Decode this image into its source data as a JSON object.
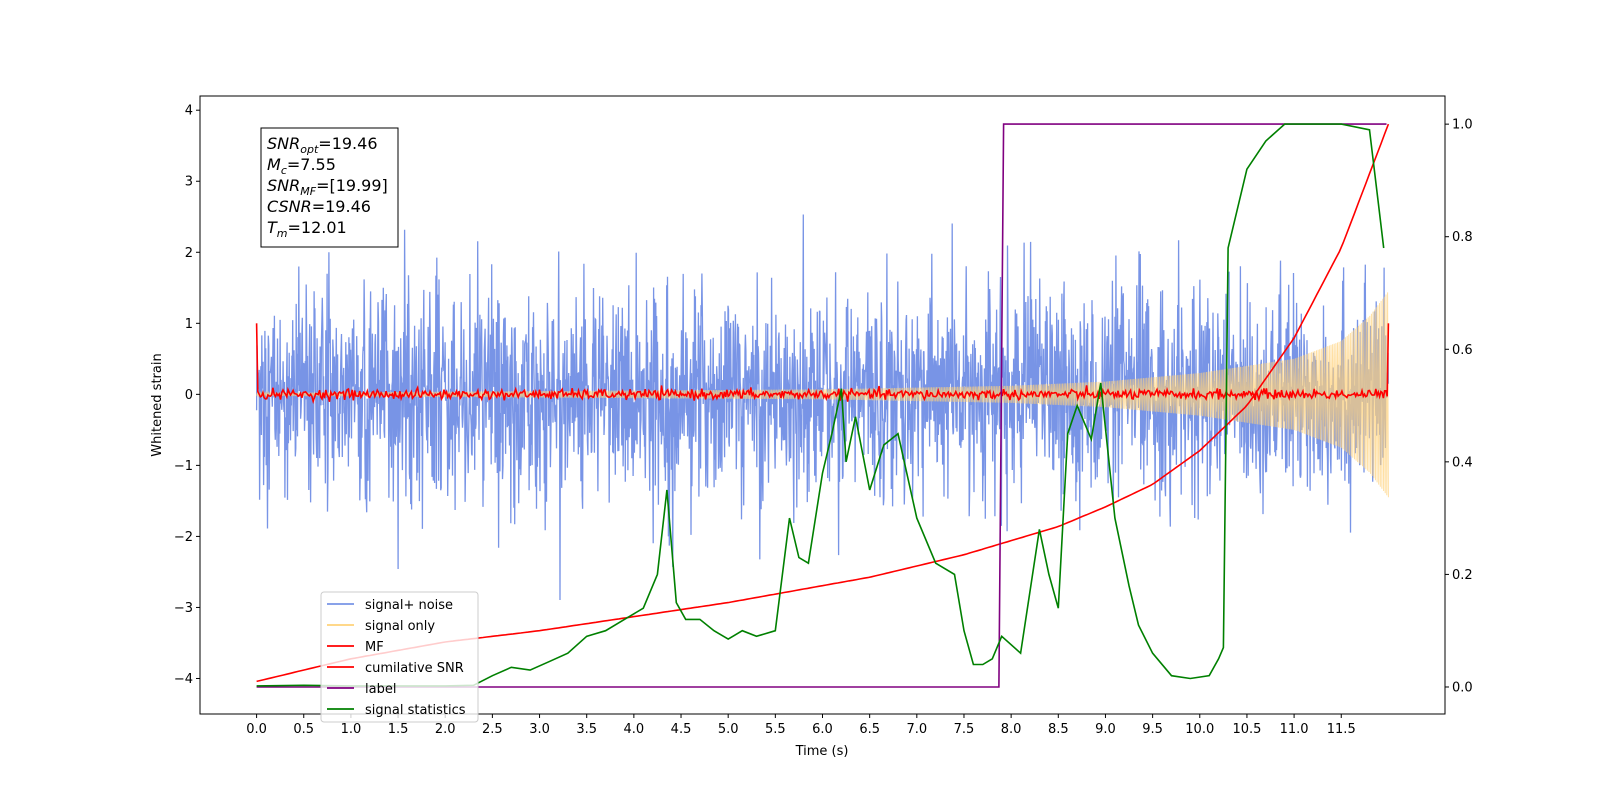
{
  "chart_data": {
    "type": "line",
    "xlabel": "Time (s)",
    "ylabel": "Whitened strain",
    "xlim": [
      -0.6,
      12.6
    ],
    "ylim_left": [
      -4.5,
      4.2
    ],
    "ylim_right": [
      -0.048,
      1.05
    ],
    "x_ticks": [
      "0.0",
      "0.5",
      "1.0",
      "1.5",
      "2.0",
      "2.5",
      "3.0",
      "3.5",
      "4.0",
      "4.5",
      "5.0",
      "5.5",
      "6.0",
      "6.5",
      "7.0",
      "7.5",
      "8.0",
      "8.5",
      "9.0",
      "9.5",
      "10.0",
      "10.5",
      "11.0",
      "11.5"
    ],
    "y_ticks_left": [
      "4",
      "3",
      "2",
      "1",
      "0",
      "−1",
      "−2",
      "−3",
      "−4"
    ],
    "y_ticks_right": [
      "1.0",
      "0.8",
      "0.6",
      "0.4",
      "0.2",
      "0.0"
    ],
    "grid": false,
    "legend_placement": "lower-left",
    "info_box": {
      "lines": [
        {
          "sym": "SNR",
          "sub": "opt",
          "val": "=19.46"
        },
        {
          "sym": "M",
          "sub": "c",
          "val": "=7.55"
        },
        {
          "sym": "SNR",
          "sub": "MF",
          "val": "=[19.99]"
        },
        {
          "sym": "CSNR",
          "sub": "",
          "val": "=19.46"
        },
        {
          "sym": "T",
          "sub": "m",
          "val": "=12.01"
        }
      ]
    },
    "series": [
      {
        "name": "signal+ noise",
        "color": "#7894e6",
        "axis": "left",
        "noise_std": 0.72,
        "t_range": [
          0.0,
          12.0
        ]
      },
      {
        "name": "signal only",
        "color": "#ffd27a",
        "axis": "left",
        "envelope": [
          [
            0.0,
            0.02
          ],
          [
            6.0,
            0.07
          ],
          [
            8.0,
            0.12
          ],
          [
            9.0,
            0.18
          ],
          [
            10.0,
            0.3
          ],
          [
            11.0,
            0.5
          ],
          [
            11.5,
            0.75
          ],
          [
            11.8,
            1.1
          ],
          [
            12.0,
            1.45
          ]
        ]
      },
      {
        "name": "MF",
        "color": "#ff0000",
        "axis": "left",
        "start_value": 1.0,
        "end_value": 1.0,
        "noise_std": 0.035
      },
      {
        "name": "cumilative SNR",
        "color": "#ff0000",
        "axis": "right",
        "x": [
          0.0,
          1.0,
          2.0,
          3.0,
          4.0,
          5.0,
          5.5,
          6.0,
          6.5,
          7.0,
          7.5,
          8.0,
          8.5,
          9.0,
          9.5,
          10.0,
          10.5,
          11.0,
          11.5,
          12.0
        ],
        "values": [
          0.01,
          0.05,
          0.08,
          0.1,
          0.125,
          0.15,
          0.165,
          0.18,
          0.195,
          0.215,
          0.235,
          0.26,
          0.285,
          0.32,
          0.36,
          0.42,
          0.5,
          0.62,
          0.78,
          1.0
        ]
      },
      {
        "name": "label",
        "color": "#800080",
        "axis": "right",
        "x": [
          0.0,
          7.87,
          7.92,
          11.98
        ],
        "values": [
          0.0,
          0.0,
          1.0,
          1.0
        ]
      },
      {
        "name": "signal statistics",
        "color": "#008000",
        "axis": "right",
        "x": [
          0.0,
          0.5,
          1.0,
          1.5,
          2.0,
          2.3,
          2.5,
          2.7,
          2.9,
          3.1,
          3.3,
          3.5,
          3.7,
          3.9,
          4.1,
          4.25,
          4.35,
          4.45,
          4.55,
          4.7,
          4.85,
          5.0,
          5.15,
          5.3,
          5.5,
          5.65,
          5.75,
          5.85,
          6.0,
          6.1,
          6.2,
          6.25,
          6.35,
          6.5,
          6.65,
          6.8,
          7.0,
          7.2,
          7.4,
          7.5,
          7.6,
          7.7,
          7.8,
          7.9,
          8.1,
          8.3,
          8.4,
          8.5,
          8.6,
          8.7,
          8.85,
          8.95,
          9.1,
          9.25,
          9.35,
          9.5,
          9.7,
          9.9,
          10.1,
          10.2,
          10.25,
          10.3,
          10.5,
          10.7,
          10.9,
          11.1,
          11.5,
          11.8,
          11.9,
          11.95
        ],
        "values": [
          0.002,
          0.003,
          0.002,
          0.002,
          0.002,
          0.003,
          0.02,
          0.035,
          0.03,
          0.045,
          0.06,
          0.09,
          0.1,
          0.12,
          0.14,
          0.2,
          0.35,
          0.15,
          0.12,
          0.12,
          0.1,
          0.085,
          0.1,
          0.09,
          0.1,
          0.3,
          0.23,
          0.22,
          0.38,
          0.45,
          0.53,
          0.4,
          0.48,
          0.35,
          0.43,
          0.45,
          0.3,
          0.22,
          0.2,
          0.1,
          0.04,
          0.04,
          0.05,
          0.09,
          0.06,
          0.28,
          0.2,
          0.14,
          0.45,
          0.5,
          0.44,
          0.54,
          0.3,
          0.18,
          0.11,
          0.06,
          0.02,
          0.015,
          0.02,
          0.05,
          0.07,
          0.78,
          0.92,
          0.97,
          1.0,
          1.0,
          1.0,
          0.99,
          0.85,
          0.78
        ]
      }
    ]
  }
}
